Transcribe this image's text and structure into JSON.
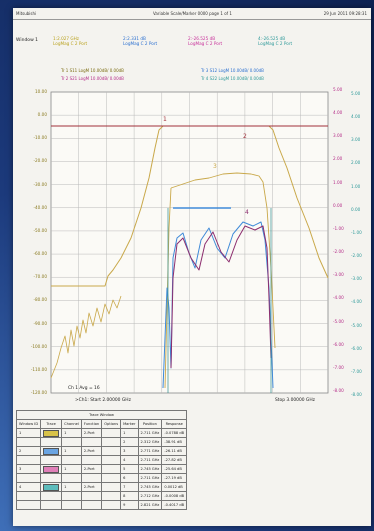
{
  "header": {
    "left": "Mitsubishi",
    "center": "Variable Scale/Marker 0000  page 1 of 1",
    "right": "29 Jun 2011  09:28:31"
  },
  "window_label": "Window 1",
  "markers_header": [
    {
      "text": "1:2.027 GHz\nLogMag C 2 Port",
      "color": "#b9a21e"
    },
    {
      "text": "2:2.331 dB\nLogMag C 2 Port",
      "color": "#2a6fd0"
    },
    {
      "text": "2:-26.525 dB\nLogMag C 2 Port",
      "color": "#c8309a"
    },
    {
      "text": "4:-26.525 dB\nLogMag C 2 Port",
      "color": "#2f9a9a"
    }
  ],
  "trace_labels": [
    {
      "text": "Tr 1  S11  LogM 10.00dB/  0.00dB",
      "color": "#7a6b10"
    },
    {
      "text": "Tr 2  S21  LogM 10.00dB/  0.00dB",
      "color": "#b52c88"
    },
    {
      "text": "Tr 3  S12  LogM 10.00dB/  0.00dB",
      "color": "#2a6fd0"
    },
    {
      "text": "Tr 4  S22  LogM 10.00dB/  0.00dB",
      "color": "#2f9a9a"
    }
  ],
  "left_axis": [
    "10.00",
    "0.00",
    "-10.00",
    "-20.00",
    "-30.00",
    "-40.00",
    "-50.00",
    "-60.00",
    "-70.00",
    "-80.00",
    "-90.00",
    "-100.00",
    "-110.00",
    "-120.00"
  ],
  "right_axis": {
    "col1": [
      "5.00",
      "4.00",
      "3.00",
      "2.00",
      "1.00",
      "0.00",
      "-1.00",
      "-2.00",
      "-3.00",
      "-4.00",
      "-5.00",
      "-6.00",
      "-7.00",
      "-8.00"
    ],
    "col2": [
      "5.00",
      "4.00",
      "3.00",
      "2.00",
      "1.00",
      "0.00",
      "-1.00",
      "-2.00",
      "-3.00",
      "-4.00",
      "-5.00",
      "-6.00",
      "-7.00",
      "-8.00"
    ]
  },
  "footer": {
    "ch_avg": "Ch 1 Avg = 16",
    "start": ">Ch1: Start 2.00000 GHz",
    "stop": "Stop 3.00000 GHz"
  },
  "marker_table": {
    "title": "Trace Window",
    "headers": [
      "Window ID",
      "Trace",
      "Channel",
      "Function",
      "Options",
      "Marker",
      "Position",
      "Response"
    ],
    "rows": [
      {
        "win": "1",
        "trace_color": "#d9c34a",
        "ch": "1",
        "fn": "2-Port",
        "marker": "1",
        "pos": "2.711 GHz",
        "resp": "-0.0788 dB"
      },
      {
        "win": "",
        "trace_color": "",
        "ch": "",
        "fn": "",
        "marker": "2",
        "pos": "2.312 GHz",
        "resp": "-38.91 dB"
      },
      {
        "win": "2",
        "trace_color": "#6aa4e2",
        "ch": "1",
        "fn": "2-Port",
        "marker": "3",
        "pos": "2.771 GHz",
        "resp": "-26.11 dB"
      },
      {
        "win": "",
        "trace_color": "",
        "ch": "",
        "fn": "",
        "marker": "4",
        "pos": "2.711 GHz",
        "resp": "-27.82 dB"
      },
      {
        "win": "3",
        "trace_color": "#e07fb8",
        "ch": "1",
        "fn": "2-Port",
        "marker": "5",
        "pos": "2.745 GHz",
        "resp": "-25.64 dB"
      },
      {
        "win": "",
        "trace_color": "",
        "ch": "",
        "fn": "",
        "marker": "6",
        "pos": "2.711 GHz",
        "resp": "-27.19 dB"
      },
      {
        "win": "4",
        "trace_color": "#5dbcbc",
        "ch": "1",
        "fn": "2-Port",
        "marker": "7",
        "pos": "2.745 GHz",
        "resp": "0.0012 dB"
      },
      {
        "win": "",
        "trace_color": "",
        "ch": "",
        "fn": "",
        "marker": "8",
        "pos": "2.712 GHz",
        "resp": "-0.0008 dB"
      },
      {
        "win": "",
        "trace_color": "",
        "ch": "",
        "fn": "",
        "marker": "9",
        "pos": "2.821 GHz",
        "resp": "-0.4017 dB"
      }
    ]
  },
  "colors": {
    "s11": "#c9a84a",
    "s21": "#8c2d6e",
    "s12": "#3f8ad8",
    "s22": "#2e8f8f",
    "grid": "#b9b9b9"
  }
}
